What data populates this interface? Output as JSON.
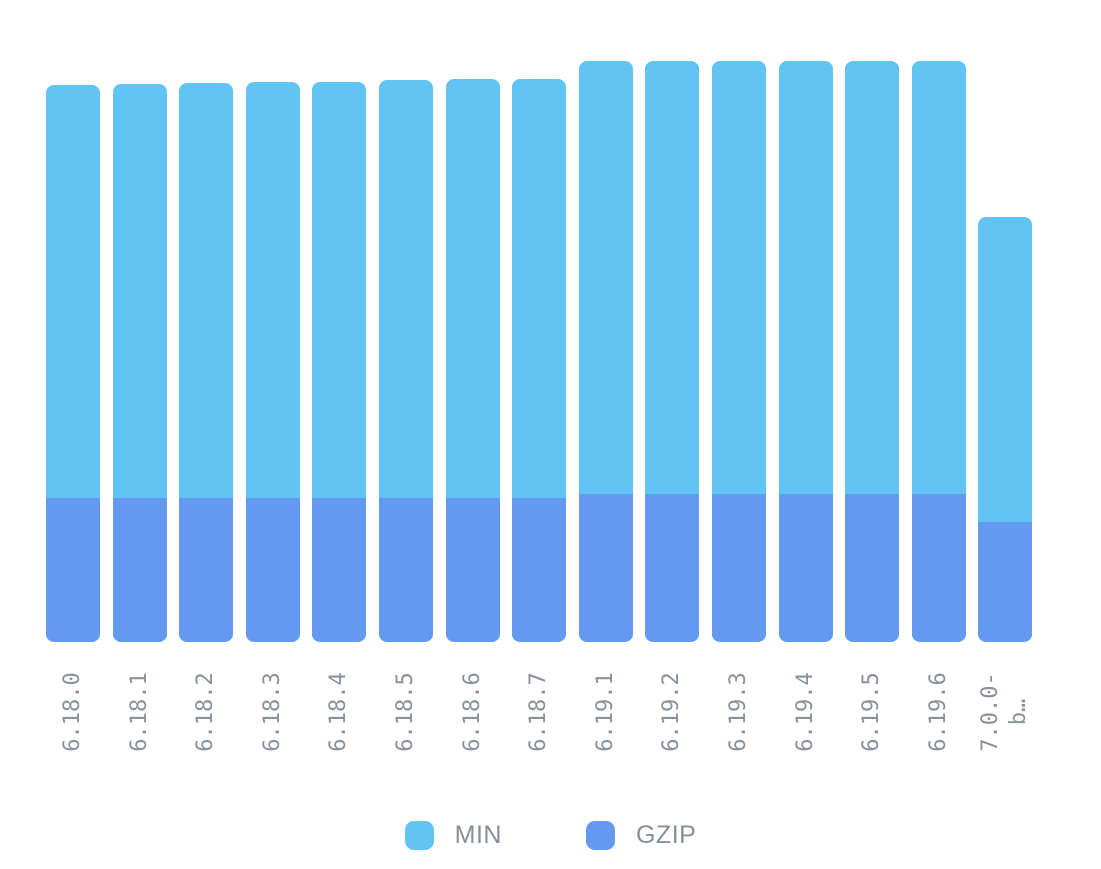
{
  "chart_data": {
    "type": "bar",
    "stacked": true,
    "title": "",
    "xlabel": "",
    "ylabel": "",
    "grid": false,
    "y_axis_visible": false,
    "value_units": "screenshot pixels (chart shows no numeric axis; values are relative segment heights)",
    "categories": [
      "6.18.0",
      "6.18.1",
      "6.18.2",
      "6.18.3",
      "6.18.4",
      "6.18.5",
      "6.18.6",
      "6.18.7",
      "6.19.1",
      "6.19.2",
      "6.19.3",
      "6.19.4",
      "6.19.5",
      "6.19.6",
      "7.0.0-\nb…"
    ],
    "series": [
      {
        "name": "MIN",
        "stack_position": "top",
        "color": "#62c3f5",
        "values": [
          413,
          414,
          415,
          416,
          416,
          418,
          419,
          419,
          433,
          433,
          433,
          433,
          433,
          433,
          305
        ]
      },
      {
        "name": "GZIP",
        "stack_position": "bottom",
        "color": "#6499f0",
        "values": [
          144,
          144,
          144,
          144,
          144,
          144,
          144,
          144,
          148,
          148,
          148,
          148,
          148,
          148,
          120
        ]
      }
    ],
    "legend": {
      "position": "bottom",
      "entries": [
        {
          "label": "MIN",
          "color": "#62c3f5"
        },
        {
          "label": "GZIP",
          "color": "#6499f0"
        }
      ]
    },
    "x_tick_style": {
      "rotation_deg": -90,
      "color": "#8b919c"
    }
  }
}
